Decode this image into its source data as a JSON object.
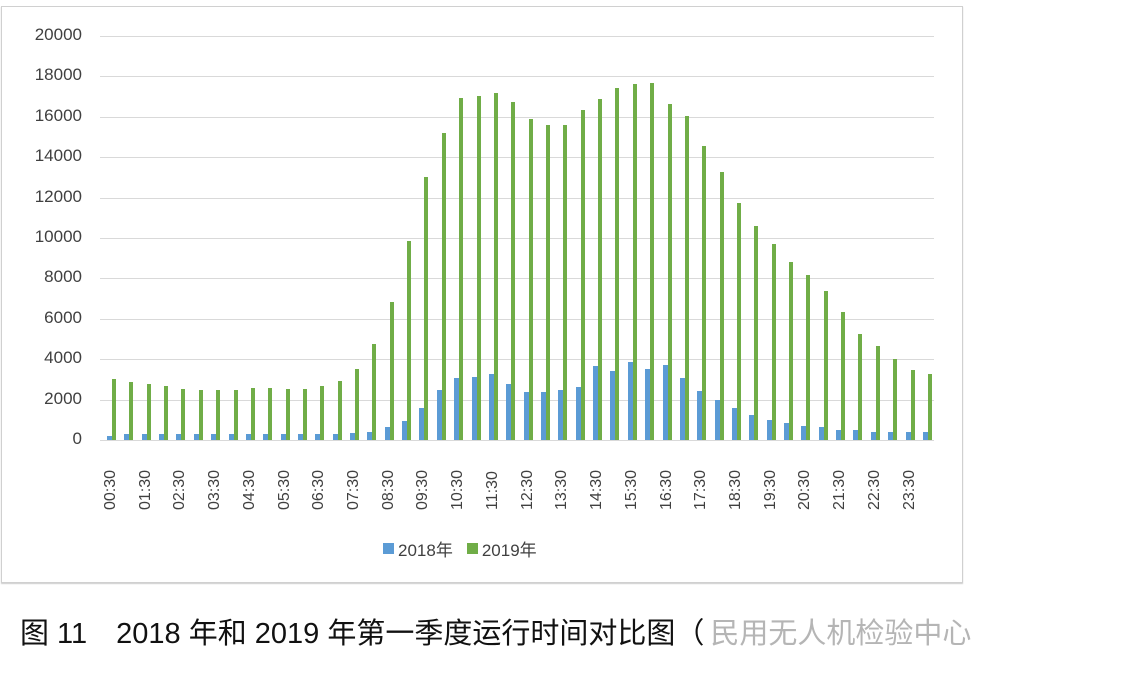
{
  "chart_data": {
    "type": "bar",
    "title": "",
    "xlabel": "",
    "ylabel": "",
    "ylim": [
      0,
      20000
    ],
    "yticks": [
      0,
      2000,
      4000,
      6000,
      8000,
      10000,
      12000,
      14000,
      16000,
      18000,
      20000
    ],
    "grid": true,
    "legend_position": "bottom",
    "categories": [
      "00:30",
      "01:00",
      "01:30",
      "02:00",
      "02:30",
      "03:00",
      "03:30",
      "04:00",
      "04:30",
      "05:00",
      "05:30",
      "06:00",
      "06:30",
      "07:00",
      "07:30",
      "08:00",
      "08:30",
      "09:00",
      "09:30",
      "10:00",
      "10:30",
      "11:00",
      "11:30",
      "12:00",
      "12:30",
      "13:00",
      "13:30",
      "14:00",
      "14:30",
      "15:00",
      "15:30",
      "16:00",
      "16:30",
      "17:00",
      "17:30",
      "18:00",
      "18:30",
      "19:00",
      "19:30",
      "20:00",
      "20:30",
      "21:00",
      "21:30",
      "22:00",
      "22:30",
      "23:00",
      "23:30",
      "24:00"
    ],
    "tick_labels_shown": [
      "00:30",
      "01:30",
      "02:30",
      "03:30",
      "04:30",
      "05:30",
      "06:30",
      "07:30",
      "08:30",
      "09:30",
      "10:30",
      "11:30",
      "12:30",
      "13:30",
      "14:30",
      "15:30",
      "16:30",
      "17:30",
      "18:30",
      "19:30",
      "20:30",
      "21:30",
      "22:30",
      "23:30"
    ],
    "series": [
      {
        "name": "2018年",
        "color": "#5b9bd5",
        "values": [
          200,
          300,
          300,
          300,
          300,
          300,
          300,
          300,
          300,
          300,
          300,
          300,
          300,
          300,
          350,
          400,
          640,
          940,
          1590,
          2480,
          3080,
          3130,
          3280,
          2780,
          2380,
          2380,
          2480,
          2630,
          3670,
          3420,
          3870,
          3520,
          3720,
          3080,
          2430,
          1980,
          1590,
          1240,
          990,
          840,
          690,
          640,
          500,
          500,
          400,
          400,
          400,
          400
        ]
      },
      {
        "name": "2019年",
        "color": "#70ad47",
        "values": [
          3000,
          2870,
          2770,
          2670,
          2520,
          2480,
          2500,
          2480,
          2570,
          2550,
          2520,
          2520,
          2670,
          2920,
          3520,
          4770,
          6830,
          9870,
          13000,
          15200,
          16950,
          17050,
          17200,
          16750,
          15900,
          15600,
          15600,
          16350,
          16900,
          17450,
          17600,
          17650,
          16650,
          16050,
          14550,
          13250,
          11750,
          10600,
          9700,
          8830,
          8150,
          7400,
          6350,
          5260,
          4650,
          4020,
          3470,
          3270
        ]
      }
    ]
  },
  "legend": {
    "items": [
      "2018年",
      "2019年"
    ]
  },
  "caption": {
    "text": "图 11　2018 年和 2019 年第一季度运行时间对比图（",
    "watermark": "民用无人机检验中心"
  }
}
